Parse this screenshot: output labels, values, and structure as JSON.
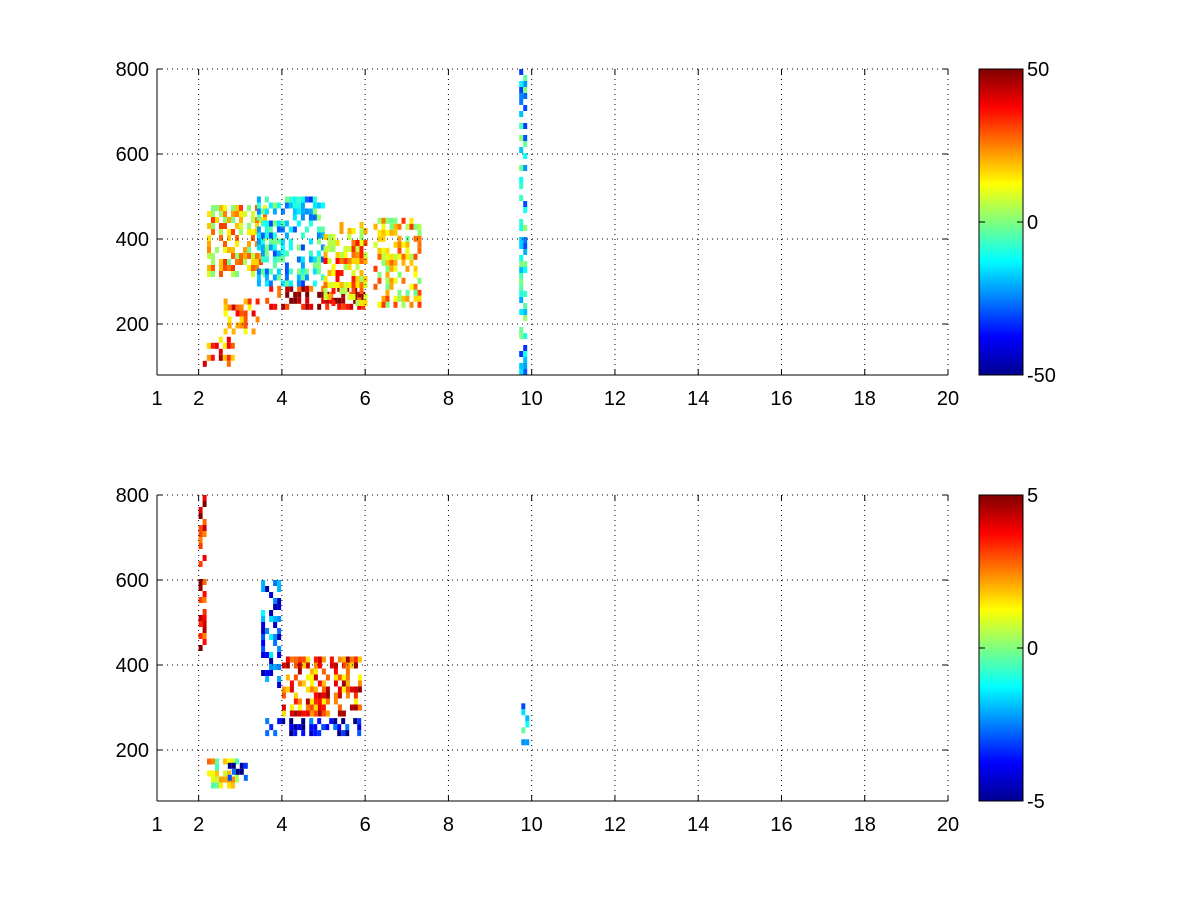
{
  "chart_data": [
    {
      "type": "heatmap",
      "title": "",
      "xlabel": "",
      "ylabel": "",
      "xlim": [
        1,
        20
      ],
      "ylim": [
        80,
        800
      ],
      "x_ticks": [
        1,
        2,
        4,
        6,
        8,
        10,
        12,
        14,
        16,
        18,
        20
      ],
      "x_tick_labels": [
        "1",
        "2",
        "4",
        "6",
        "8",
        "10",
        "12",
        "14",
        "16",
        "18",
        "20"
      ],
      "y_ticks": [
        200,
        400,
        600,
        800
      ],
      "y_tick_labels": [
        "200",
        "400",
        "600",
        "800"
      ],
      "grid": true,
      "colormap": "jet",
      "colorbar": {
        "range": [
          -50,
          50
        ],
        "ticks": [
          50,
          0,
          -50
        ],
        "tick_labels": [
          "50",
          "0",
          "-50"
        ]
      },
      "features": [
        {
          "x": [
            2.1,
            2.8
          ],
          "y": [
            110,
            170
          ],
          "value": 30
        },
        {
          "x": [
            2.6,
            3.4
          ],
          "y": [
            180,
            260
          ],
          "value": 25
        },
        {
          "x": [
            2.2,
            3.6
          ],
          "y": [
            320,
            480
          ],
          "value": 15
        },
        {
          "x": [
            3.6,
            6.0
          ],
          "y": [
            240,
            290
          ],
          "value": 40
        },
        {
          "x": [
            3.4,
            5.0
          ],
          "y": [
            300,
            500
          ],
          "value": -15
        },
        {
          "x": [
            5.0,
            6.0
          ],
          "y": [
            250,
            440
          ],
          "value": 20
        },
        {
          "x": [
            6.2,
            7.3
          ],
          "y": [
            250,
            450
          ],
          "value": 15
        },
        {
          "x": [
            9.7,
            9.85
          ],
          "y": [
            80,
            800
          ],
          "value": -15
        }
      ],
      "seed": 11
    },
    {
      "type": "heatmap",
      "title": "",
      "xlabel": "",
      "ylabel": "",
      "xlim": [
        1,
        20
      ],
      "ylim": [
        80,
        800
      ],
      "x_ticks": [
        1,
        2,
        4,
        6,
        8,
        10,
        12,
        14,
        16,
        18,
        20
      ],
      "x_tick_labels": [
        "1",
        "2",
        "4",
        "6",
        "8",
        "10",
        "12",
        "14",
        "16",
        "18",
        "20"
      ],
      "y_ticks": [
        200,
        400,
        600,
        800
      ],
      "y_tick_labels": [
        "200",
        "400",
        "600",
        "800"
      ],
      "grid": true,
      "colormap": "jet",
      "colorbar": {
        "range": [
          -5,
          5
        ],
        "ticks": [
          5,
          0,
          -5
        ],
        "tick_labels": [
          "5",
          "0",
          "-5"
        ]
      },
      "features": [
        {
          "x": [
            2.0,
            2.15
          ],
          "y": [
            430,
            800
          ],
          "value": 4
        },
        {
          "x": [
            2.2,
            2.9
          ],
          "y": [
            110,
            180
          ],
          "value": 1
        },
        {
          "x": [
            2.7,
            3.2
          ],
          "y": [
            130,
            170
          ],
          "value": -4
        },
        {
          "x": [
            3.5,
            3.9
          ],
          "y": [
            350,
            600
          ],
          "value": -3
        },
        {
          "x": [
            3.6,
            5.9
          ],
          "y": [
            245,
            275
          ],
          "value": -4
        },
        {
          "x": [
            4.0,
            5.9
          ],
          "y": [
            290,
            420
          ],
          "value": 3
        },
        {
          "x": [
            9.75,
            9.85
          ],
          "y": [
            220,
            310
          ],
          "value": -1.5
        }
      ],
      "seed": 23
    }
  ]
}
